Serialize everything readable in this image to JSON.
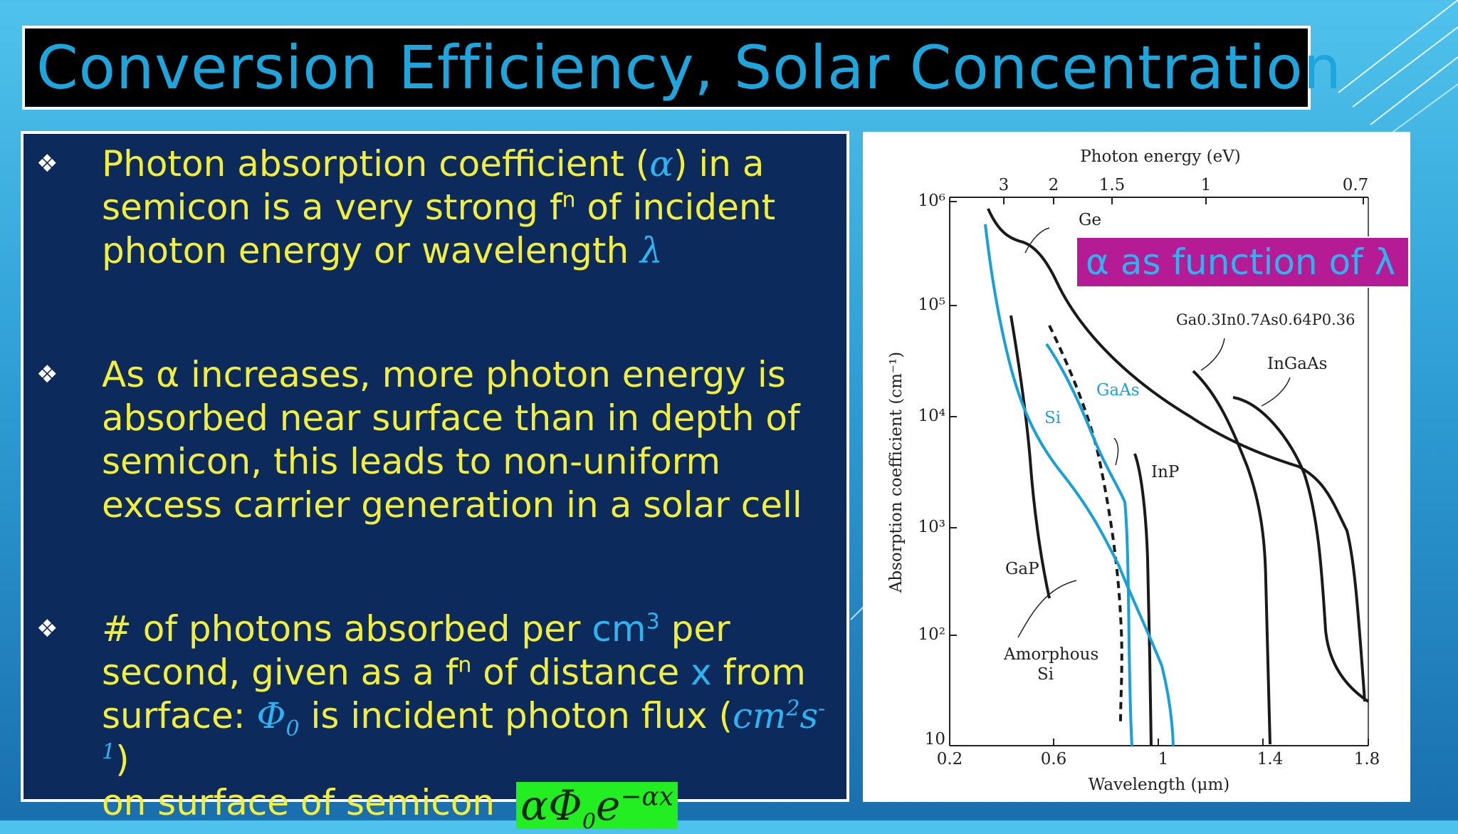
{
  "slide": {
    "title": "Conversion Efficiency, Solar Concentration"
  },
  "bullets": {
    "marker": "❖",
    "b1": {
      "t1": "Photon absorption coefficient (",
      "alpha": "α",
      "t2": ") in a semicon is a very strong f",
      "sup": "n",
      "t3": " of incident photon energy or wavelength ",
      "lambda": "λ"
    },
    "b2": {
      "t1": "As α increases, more photon energy is absorbed near surface than in depth of semicon, this leads to non-uniform excess carrier generation in a solar cell"
    },
    "b3": {
      "t1": "# of photons absorbed per ",
      "cm": "cm",
      "cm_sup": "3",
      "t2": " per second, given as a f",
      "sup": "n",
      "t3": " of distance ",
      "x": "x",
      "t4": " from surface: ",
      "phi": "Φ",
      "phi_sub": "0",
      "t5": " is incident photon flux (",
      "flux_unit": "cm",
      "flux_sup1": "2",
      "flux_s": "s",
      "flux_sup2": "-1",
      "t6": ")",
      "t7": "on surface of semicon",
      "formula_base": "αΦ",
      "formula_sub": "0",
      "formula_e": "e",
      "formula_exp": "−αx"
    }
  },
  "figure": {
    "callout": "α as function of λ",
    "top_axis_label": "Photon energy (eV)",
    "top_ticks": [
      "3",
      "2",
      "1.5",
      "1",
      "0.7"
    ],
    "x_axis_label": "Wavelength (μm)",
    "x_ticks": [
      "0.2",
      "0.6",
      "1",
      "1.4",
      "1.8"
    ],
    "y_axis_label": "Absorption coefficient (cm⁻¹)",
    "y_ticks": [
      "10⁶",
      "10⁵",
      "10⁴",
      "10³",
      "10²",
      "10"
    ],
    "curve_labels": {
      "ge": "Ge",
      "gainasp": "Ga0.3In0.7As0.64P0.36",
      "ingaas": "InGaAs",
      "gaas": "GaAs",
      "si": "Si",
      "inp": "InP",
      "gap": "GaP",
      "amorphous_1": "Amorphous",
      "amorphous_2": "Si"
    },
    "colors": {
      "black_curve": "#1a1a1a",
      "blue_curve": "#1aa0d8"
    }
  }
}
